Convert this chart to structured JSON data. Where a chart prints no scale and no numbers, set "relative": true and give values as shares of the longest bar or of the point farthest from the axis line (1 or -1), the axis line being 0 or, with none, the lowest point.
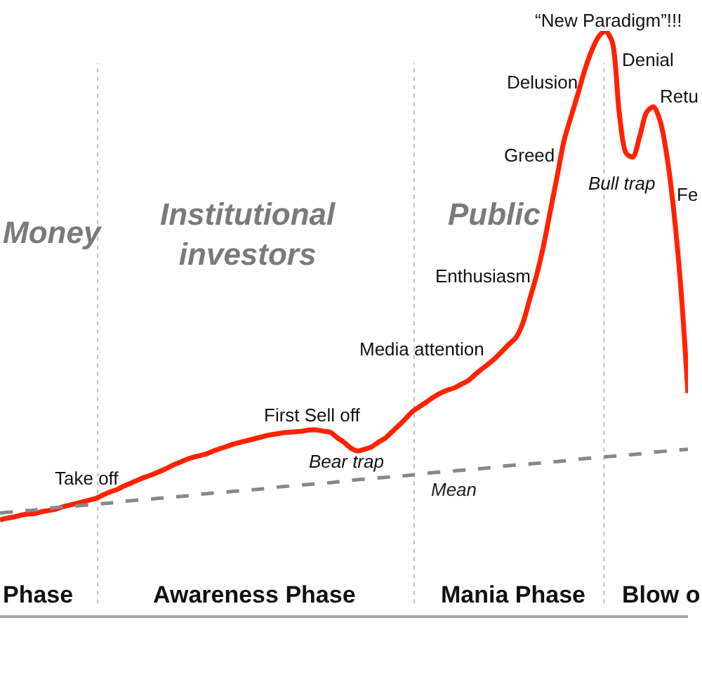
{
  "chart_data": {
    "type": "line",
    "relative": true,
    "categories": [
      null,
      null,
      null,
      null,
      null,
      null,
      null,
      null,
      null,
      null,
      null,
      null,
      null,
      null,
      null,
      null,
      null,
      null,
      null,
      null,
      null,
      null,
      null,
      null,
      null,
      null,
      null,
      null,
      null,
      null,
      null,
      null,
      null,
      null,
      null,
      null,
      null,
      null,
      null,
      null,
      null,
      null,
      null,
      null,
      null,
      null,
      null,
      null,
      null,
      null,
      null,
      null,
      null,
      null,
      null,
      null,
      null,
      null,
      null,
      null,
      null,
      null,
      null,
      null,
      null,
      null,
      null,
      null,
      null,
      null,
      null,
      null,
      null,
      null,
      null,
      null,
      null,
      null,
      null,
      null,
      null,
      null,
      null,
      null,
      null,
      null,
      null,
      null,
      null,
      null,
      null,
      null,
      null,
      null,
      null,
      null,
      null,
      null,
      null,
      null,
      null
    ],
    "series": [
      {
        "color": "#ff2200",
        "line_style": "solid",
        "values": [
          0.163,
          0.166,
          0.168,
          0.171,
          0.173,
          0.174,
          0.177,
          0.179,
          0.181,
          0.185,
          0.188,
          0.191,
          0.194,
          0.197,
          0.2,
          0.206,
          0.211,
          0.215,
          0.221,
          0.226,
          0.231,
          0.236,
          0.24,
          0.245,
          0.25,
          0.256,
          0.261,
          0.266,
          0.27,
          0.273,
          0.276,
          0.281,
          0.285,
          0.289,
          0.293,
          0.296,
          0.299,
          0.302,
          0.305,
          0.308,
          0.31,
          0.312,
          0.313,
          0.314,
          0.315,
          0.317,
          0.317,
          0.315,
          0.313,
          0.304,
          0.296,
          0.286,
          0.281,
          0.284,
          0.288,
          0.296,
          0.303,
          0.314,
          0.325,
          0.337,
          0.349,
          0.357,
          0.365,
          0.373,
          0.38,
          0.385,
          0.389,
          0.395,
          0.401,
          0.411,
          0.421,
          0.43,
          0.44,
          0.452,
          0.464,
          0.475,
          0.5,
          0.541,
          0.582,
          0.632,
          0.692,
          0.752,
          0.813,
          0.853,
          0.892,
          0.933,
          0.966,
          0.99,
          1.0,
          0.981,
          0.861,
          0.791,
          0.784,
          0.82,
          0.861,
          0.87,
          0.844,
          0.781,
          0.685,
          0.555,
          0.38
        ]
      },
      {
        "name": "Mean",
        "color": "#888888",
        "line_style": "dashed",
        "values": [
          0.175,
          0.176,
          0.177,
          0.178,
          0.179,
          0.18,
          0.182,
          0.183,
          0.184,
          0.185,
          0.186,
          0.187,
          0.188,
          0.189,
          0.19,
          0.191,
          0.192,
          0.194,
          0.195,
          0.196,
          0.197,
          0.198,
          0.199,
          0.2,
          0.201,
          0.202,
          0.203,
          0.204,
          0.206,
          0.207,
          0.208,
          0.209,
          0.21,
          0.211,
          0.212,
          0.213,
          0.214,
          0.215,
          0.216,
          0.218,
          0.219,
          0.22,
          0.221,
          0.222,
          0.223,
          0.224,
          0.225,
          0.226,
          0.227,
          0.228,
          0.23,
          0.231,
          0.232,
          0.233,
          0.234,
          0.235,
          0.236,
          0.237,
          0.238,
          0.239,
          0.24,
          0.241,
          0.243,
          0.244,
          0.245,
          0.246,
          0.247,
          0.248,
          0.249,
          0.25,
          0.251,
          0.252,
          0.253,
          0.255,
          0.256,
          0.257,
          0.258,
          0.259,
          0.26,
          0.261,
          0.262,
          0.263,
          0.264,
          0.265,
          0.267,
          0.268,
          0.269,
          0.27,
          0.271,
          0.272,
          0.273,
          0.274,
          0.275,
          0.276,
          0.277,
          0.279,
          0.28,
          0.281,
          0.282,
          0.283,
          0.284
        ]
      }
    ],
    "annotations": [
      "Money",
      "Institutional\ninvestors",
      "Public",
      "Phase",
      "Awareness Phase",
      "Mania Phase",
      "Blow o",
      "Take off",
      "First Sell off",
      "Bear trap",
      "Media attention",
      "Enthusiasm",
      "Greed",
      "Delusion",
      "“New Paradigm”!!!",
      "Denial",
      "Retu",
      "Bull trap",
      "Fe"
    ]
  }
}
